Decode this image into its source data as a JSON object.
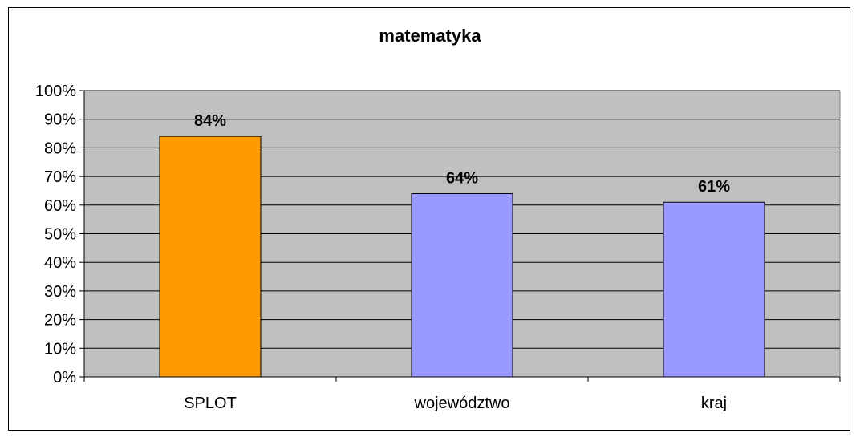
{
  "chart_data": {
    "type": "bar",
    "title": "matematyka",
    "categories": [
      "SPLOT",
      "województwo",
      "kraj"
    ],
    "values": [
      84,
      64,
      61
    ],
    "data_labels": [
      "84%",
      "64%",
      "61%"
    ],
    "colors": [
      "#FF9900",
      "#9999FF",
      "#9999FF"
    ],
    "ylim": [
      0,
      100
    ],
    "y_ticks": [
      "0%",
      "10%",
      "20%",
      "30%",
      "40%",
      "50%",
      "60%",
      "70%",
      "80%",
      "90%",
      "100%"
    ],
    "xlabel": "",
    "ylabel": "",
    "grid": true,
    "plot_background": "#C0C0C0",
    "legend": "none"
  }
}
